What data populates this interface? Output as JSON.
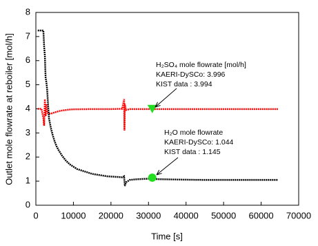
{
  "chart_data": {
    "type": "line",
    "x_label": "Time [s]",
    "y_label": "Outlet mole flowrate at reboiler [mol/h]",
    "xlim": [
      0,
      70000
    ],
    "xticks": [
      0,
      10000,
      20000,
      30000,
      40000,
      50000,
      60000,
      70000
    ],
    "ylim": [
      0,
      8
    ],
    "yticks": [
      0,
      1,
      2,
      3,
      4,
      5,
      6,
      7,
      8
    ],
    "series": [
      {
        "color": "#ff0000",
        "x": [
          500,
          1000,
          1500,
          2000,
          2200,
          2400,
          2600,
          2800,
          3000,
          3500,
          4000,
          5000,
          6000,
          7000,
          8000,
          9000,
          10000,
          15000,
          20000,
          23000,
          23500,
          23600,
          23700,
          24000,
          25000,
          30000,
          40000,
          50000,
          60000,
          64500
        ],
        "values": [
          4.0,
          4.0,
          4.0,
          3.6,
          3.3,
          4.4,
          3.7,
          4.2,
          3.85,
          3.8,
          3.8,
          3.85,
          3.9,
          3.93,
          3.95,
          3.97,
          3.98,
          3.99,
          3.99,
          4.0,
          4.4,
          3.1,
          4.2,
          3.95,
          3.99,
          3.99,
          3.99,
          3.99,
          3.99,
          3.99
        ]
      },
      {
        "color": "#000000",
        "x": [
          500,
          1000,
          1500,
          2000,
          2200,
          2400,
          2500,
          2600,
          2800,
          3000,
          3200,
          3500,
          4000,
          4500,
          5000,
          5500,
          6000,
          7000,
          8000,
          9000,
          10000,
          11000,
          12000,
          13000,
          14000,
          15000,
          17000,
          19000,
          21000,
          23000,
          23500,
          23700,
          24000,
          25000,
          27000,
          30000,
          33000,
          36000,
          40000,
          45000,
          50000,
          55000,
          60000,
          64500
        ],
        "values": [
          7.25,
          7.25,
          7.25,
          7.25,
          6.6,
          6.2,
          5.7,
          5.3,
          5.1,
          4.8,
          4.3,
          3.6,
          3.2,
          2.9,
          2.65,
          2.45,
          2.3,
          2.05,
          1.85,
          1.7,
          1.6,
          1.5,
          1.45,
          1.4,
          1.35,
          1.3,
          1.25,
          1.2,
          1.18,
          1.16,
          1.2,
          0.8,
          0.95,
          1.05,
          1.08,
          1.1,
          1.08,
          1.07,
          1.06,
          1.05,
          1.05,
          1.05,
          1.05,
          1.05
        ]
      },
      {
        "color": "#22dd22",
        "marker": "triangle",
        "x": [
          31000
        ],
        "values": [
          3.994
        ]
      },
      {
        "color": "#22dd22",
        "marker": "circle",
        "x": [
          31000
        ],
        "values": [
          1.145
        ]
      }
    ],
    "annotations": [
      {
        "lines": [
          "H₂SO₄ mole flowrate [mol/h]",
          "KAERI-DySCo: 3.996",
          "KIST data      : 3.994"
        ]
      },
      {
        "lines": [
          "H₂O mole flowrate",
          "KAERI-DySCo: 1.044",
          "KIST data      : 1.145"
        ]
      }
    ]
  }
}
